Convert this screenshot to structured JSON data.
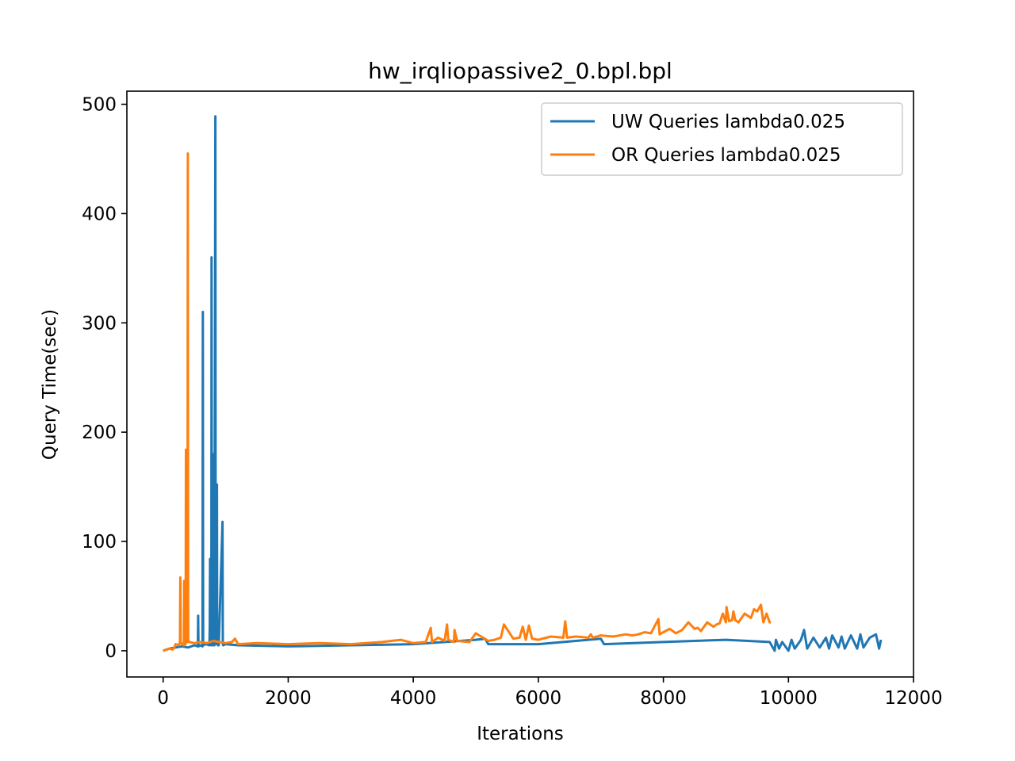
{
  "chart_data": {
    "type": "line",
    "title": "hw_irqliopassive2_0.bpl.bpl",
    "xlabel": "Iterations",
    "ylabel": "Query Time(sec)",
    "xlim": [
      -580,
      12000
    ],
    "ylim": [
      -24,
      512
    ],
    "xticks": [
      0,
      2000,
      4000,
      6000,
      8000,
      10000,
      12000
    ],
    "xtick_labels": [
      "0",
      "2000",
      "4000",
      "6000",
      "8000",
      "10000",
      "12000"
    ],
    "yticks": [
      0,
      100,
      200,
      300,
      400,
      500
    ],
    "ytick_labels": [
      "0",
      "100",
      "200",
      "300",
      "400",
      "500"
    ],
    "grid": false,
    "legend_position": "top-right",
    "series": [
      {
        "name": "UW Queries lambda0.025",
        "color": "#1f77b4",
        "x": [
          0,
          100,
          200,
          300,
          400,
          500,
          555,
          560,
          565,
          600,
          630,
          635,
          640,
          680,
          740,
          745,
          750,
          770,
          775,
          780,
          790,
          795,
          800,
          810,
          815,
          820,
          835,
          840,
          845,
          855,
          860,
          865,
          880,
          885,
          890,
          950,
          955,
          960,
          1000,
          1200,
          2000,
          3000,
          4000,
          5000,
          5150,
          5200,
          6000,
          7000,
          7050,
          8000,
          9000,
          9700,
          9780,
          9800,
          9850,
          9900,
          10000,
          10050,
          10100,
          10200,
          10250,
          10300,
          10400,
          10500,
          10600,
          10650,
          10700,
          10800,
          10850,
          10900,
          11000,
          11100,
          11150,
          11200,
          11300,
          11400,
          11450,
          11480
        ],
        "y": [
          0,
          2,
          3,
          4,
          3,
          5,
          4,
          32,
          4,
          5,
          4,
          310,
          5,
          6,
          5,
          20,
          84,
          5,
          360,
          6,
          5,
          150,
          6,
          180,
          5,
          5,
          489,
          8,
          150,
          6,
          152,
          6,
          5,
          6,
          5,
          118,
          6,
          5,
          6,
          5,
          4,
          5,
          6,
          10,
          11,
          6,
          6,
          11,
          6,
          8,
          10,
          8,
          0,
          10,
          2,
          8,
          0,
          10,
          2,
          10,
          19,
          2,
          12,
          3,
          12,
          2,
          14,
          3,
          13,
          2,
          14,
          2,
          15,
          3,
          12,
          15,
          2,
          10
        ]
      },
      {
        "name": "OR Queries lambda0.025",
        "color": "#ff7f0e",
        "x": [
          0,
          100,
          150,
          180,
          200,
          250,
          270,
          275,
          280,
          300,
          330,
          335,
          340,
          360,
          365,
          370,
          390,
          395,
          400,
          420,
          500,
          600,
          700,
          800,
          900,
          1000,
          1100,
          1150,
          1200,
          1500,
          2000,
          2500,
          3000,
          3500,
          3800,
          4000,
          4200,
          4280,
          4300,
          4400,
          4500,
          4540,
          4560,
          4650,
          4660,
          4700,
          4900,
          5000,
          5200,
          5300,
          5400,
          5450,
          5600,
          5700,
          5750,
          5800,
          5850,
          5900,
          6000,
          6200,
          6400,
          6430,
          6460,
          6600,
          6800,
          6840,
          6870,
          7000,
          7200,
          7400,
          7500,
          7600,
          7700,
          7800,
          7920,
          7940,
          8000,
          8100,
          8200,
          8300,
          8400,
          8500,
          8550,
          8600,
          8700,
          8800,
          8850,
          8900,
          8950,
          9000,
          9010,
          9050,
          9100,
          9120,
          9150,
          9200,
          9300,
          9400,
          9450,
          9500,
          9560,
          9600,
          9650,
          9700,
          9720
        ],
        "y": [
          0,
          2,
          1,
          3,
          6,
          5,
          8,
          67,
          8,
          6,
          5,
          64,
          8,
          6,
          184,
          10,
          8,
          455,
          9,
          8,
          7,
          8,
          7,
          9,
          8,
          7,
          8,
          11,
          6,
          7,
          6,
          7,
          6,
          8,
          10,
          7,
          8,
          21,
          8,
          12,
          9,
          24,
          10,
          8,
          19,
          9,
          8,
          16,
          9,
          10,
          12,
          24,
          11,
          12,
          22,
          10,
          23,
          11,
          10,
          13,
          12,
          27,
          12,
          13,
          12,
          15,
          12,
          14,
          13,
          15,
          14,
          15,
          17,
          16,
          29,
          15,
          17,
          20,
          16,
          19,
          26,
          20,
          21,
          18,
          26,
          22,
          24,
          25,
          34,
          26,
          40,
          27,
          28,
          36,
          28,
          26,
          34,
          30,
          38,
          36,
          42,
          26,
          34,
          26,
          26
        ]
      }
    ]
  }
}
